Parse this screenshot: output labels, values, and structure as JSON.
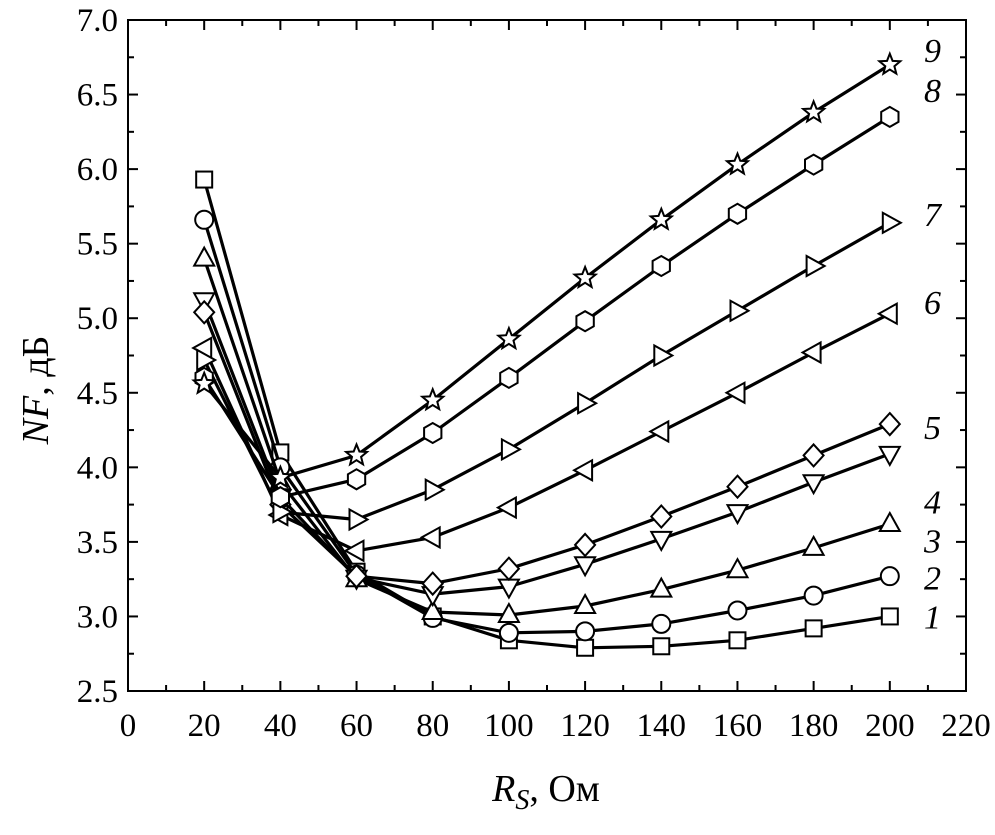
{
  "chart_data": {
    "type": "line",
    "title": "",
    "xlabel": {
      "var": "R",
      "sub": "S",
      "unit": ", Ом"
    },
    "ylabel": {
      "var": "NF",
      "unit": ", дБ"
    },
    "xlim": [
      0,
      220
    ],
    "ylim": [
      2.5,
      7.0
    ],
    "xticks": [
      0,
      20,
      40,
      60,
      80,
      100,
      120,
      140,
      160,
      180,
      200,
      220
    ],
    "yticks": [
      "2.5",
      "3.0",
      "3.5",
      "4.0",
      "4.5",
      "5.0",
      "5.5",
      "6.0",
      "6.5",
      "7.0"
    ],
    "grid": false,
    "line_color": "#000000",
    "marker_fill": "#ffffff",
    "x": [
      20,
      40,
      60,
      80,
      100,
      120,
      140,
      160,
      180,
      200
    ],
    "series": [
      {
        "name": "1",
        "marker": "square",
        "values": [
          5.93,
          4.1,
          3.3,
          3.0,
          2.84,
          2.79,
          2.8,
          2.84,
          2.92,
          3.0
        ]
      },
      {
        "name": "2",
        "marker": "circle",
        "values": [
          5.66,
          4.0,
          3.28,
          2.99,
          2.89,
          2.9,
          2.95,
          3.04,
          3.14,
          3.27
        ]
      },
      {
        "name": "3",
        "marker": "triangle-up",
        "values": [
          5.4,
          3.9,
          3.25,
          3.03,
          3.01,
          3.07,
          3.18,
          3.31,
          3.46,
          3.62
        ]
      },
      {
        "name": "4",
        "marker": "triangle-down",
        "values": [
          5.12,
          3.8,
          3.26,
          3.15,
          3.2,
          3.35,
          3.52,
          3.7,
          3.9,
          4.09
        ]
      },
      {
        "name": "5",
        "marker": "diamond",
        "values": [
          5.04,
          3.75,
          3.27,
          3.22,
          3.32,
          3.48,
          3.67,
          3.87,
          4.08,
          4.29
        ]
      },
      {
        "name": "6",
        "marker": "triangle-left",
        "values": [
          4.8,
          3.68,
          3.44,
          3.53,
          3.73,
          3.98,
          4.24,
          4.5,
          4.77,
          5.03
        ]
      },
      {
        "name": "7",
        "marker": "triangle-right",
        "values": [
          4.72,
          3.7,
          3.65,
          3.85,
          4.12,
          4.43,
          4.75,
          5.05,
          5.35,
          5.64
        ]
      },
      {
        "name": "8",
        "marker": "hexagon",
        "values": [
          4.6,
          3.8,
          3.92,
          4.23,
          4.6,
          4.98,
          5.35,
          5.7,
          6.03,
          6.35
        ]
      },
      {
        "name": "9",
        "marker": "star",
        "values": [
          4.56,
          3.93,
          4.08,
          4.45,
          4.86,
          5.27,
          5.66,
          6.03,
          6.38,
          6.7
        ]
      }
    ]
  }
}
